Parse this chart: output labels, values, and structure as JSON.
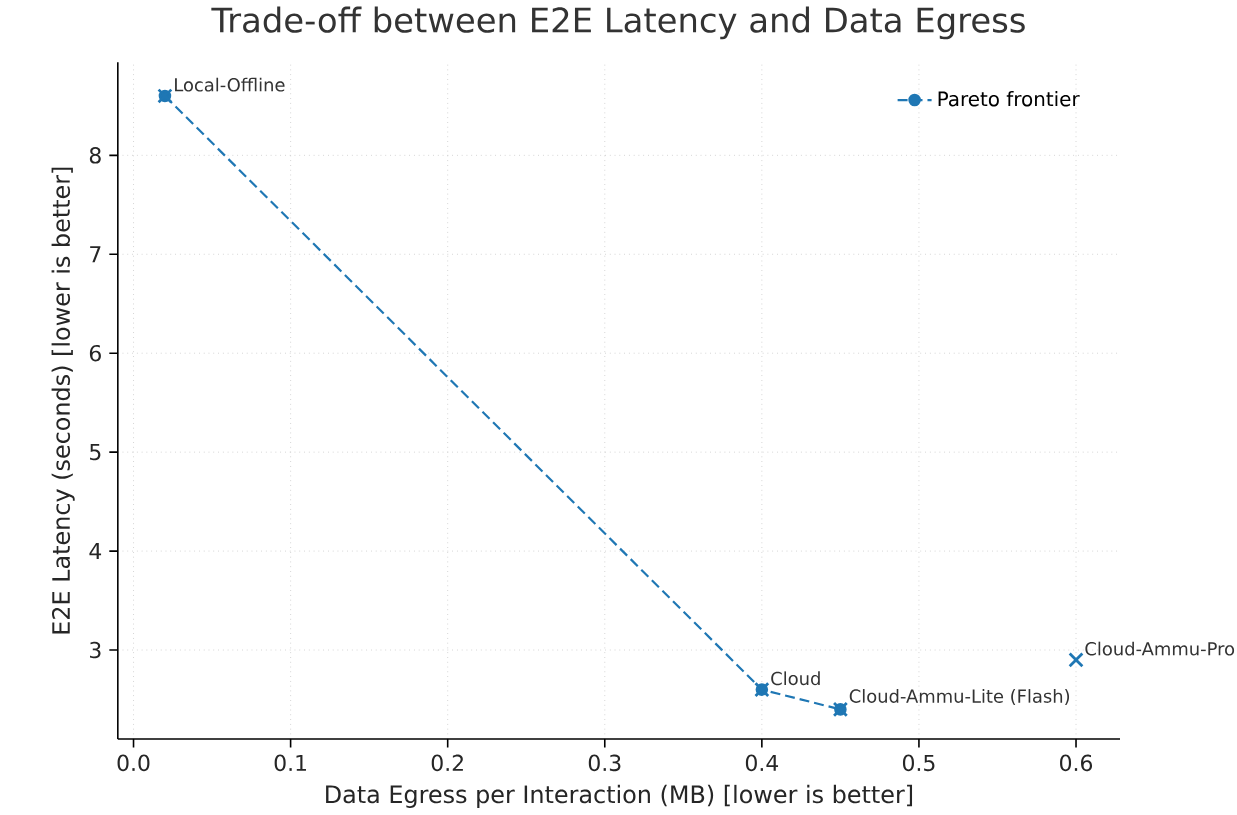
{
  "chart_data": {
    "type": "scatter",
    "title": "Trade-off between E2E Latency and Data Egress",
    "xlabel": "Data Egress per Interaction (MB)  [lower is better]",
    "ylabel": "E2E Latency (seconds)  [lower is better]",
    "series": [
      {
        "type": "scatter",
        "x": [
          0.02,
          0.4,
          0.45,
          0.6
        ],
        "values": [
          8.6,
          2.6,
          2.4,
          2.9
        ],
        "color": "#1f77b4",
        "marker": "cross"
      },
      {
        "type": "line",
        "name": "Pareto frontier",
        "x": [
          0.02,
          0.4,
          0.45
        ],
        "values": [
          8.6,
          2.6,
          2.4
        ],
        "color": "#1f77b4",
        "marker": "circle",
        "line_style": "dashed"
      }
    ],
    "annotations": [
      {
        "text": "Local-Offline",
        "x": 0.02,
        "y": 8.6
      },
      {
        "text": "Cloud",
        "x": 0.4,
        "y": 2.6
      },
      {
        "text": "Cloud-Ammu-Lite (Flash)",
        "x": 0.45,
        "y": 2.4
      },
      {
        "text": "Cloud-Ammu-Pro",
        "x": 0.6,
        "y": 2.9
      }
    ],
    "xlim": [
      -0.01,
      0.628
    ],
    "ylim": [
      2.1,
      8.94
    ],
    "xticks": [
      {
        "value": 0,
        "label": "0.0"
      },
      0.1,
      0.2,
      0.3,
      0.4,
      0.5,
      0.6
    ],
    "yticks": [
      3,
      4,
      5,
      6,
      7,
      8
    ],
    "grid": true,
    "legend": "top right"
  }
}
